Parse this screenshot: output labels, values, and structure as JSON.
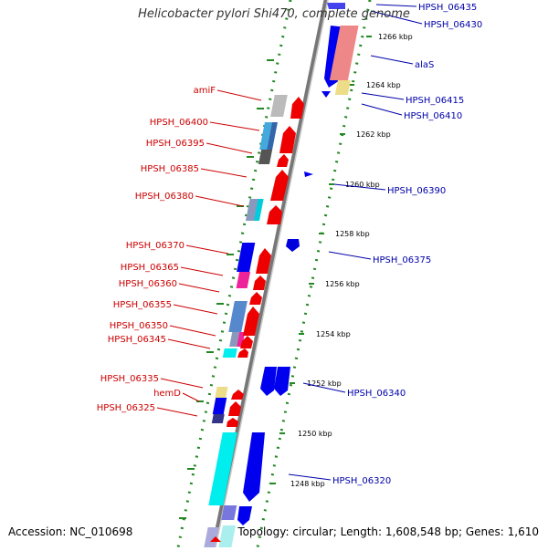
{
  "title": "Helicobacter pylori Shi470, complete genome",
  "footer": {
    "accession": "Accession: NC_010698",
    "topology": "Topology: circular; Length: 1,608,548 bp; Genes: 1,610"
  },
  "colors": {
    "strand_forward": "#0000cc",
    "strand_reverse": "#cc0000",
    "backbone": "#888888",
    "tick": "#228822"
  },
  "kbp_labels": [
    "1266 kbp",
    "1264 kbp",
    "1262 kbp",
    "1260 kbp",
    "1258 kbp",
    "1256 kbp",
    "1254 kbp",
    "1252 kbp",
    "1250 kbp",
    "1248 kbp"
  ],
  "left_genes": [
    "amiF",
    "HPSH_06400",
    "HPSH_06395",
    "HPSH_06385",
    "HPSH_06380",
    "HPSH_06370",
    "HPSH_06365",
    "HPSH_06360",
    "HPSH_06355",
    "HPSH_06350",
    "HPSH_06345",
    "HPSH_06335",
    "hemD",
    "HPSH_06325"
  ],
  "right_genes": [
    "HPSH_06435",
    "HPSH_06430",
    "alaS",
    "HPSH_06415",
    "HPSH_06410",
    "HPSH_06390",
    "HPSH_06375",
    "HPSH_06340",
    "HPSH_06320"
  ]
}
